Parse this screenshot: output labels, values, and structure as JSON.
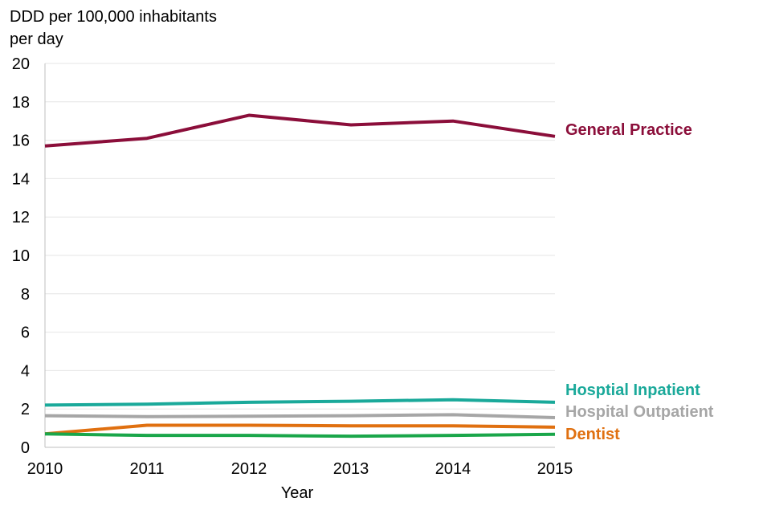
{
  "chart_data": {
    "type": "line",
    "title": "",
    "ylabel": [
      "DDD per 100,000 inhabitants",
      "per day"
    ],
    "xlabel": "Year",
    "x": [
      2010,
      2011,
      2012,
      2013,
      2014,
      2015
    ],
    "ylim": [
      0,
      20
    ],
    "yticks": [
      0,
      2,
      4,
      6,
      8,
      10,
      12,
      14,
      16,
      18,
      20
    ],
    "grid": true,
    "legend": "inline-right",
    "series": [
      {
        "name": "General Practice",
        "color": "#8b0e3a",
        "values": [
          15.7,
          16.1,
          17.3,
          16.8,
          17.0,
          16.2
        ]
      },
      {
        "name": "Hosptial Inpatient",
        "color": "#1aa99a",
        "values": [
          2.2,
          2.25,
          2.35,
          2.4,
          2.48,
          2.35
        ]
      },
      {
        "name": "Hospital Outpatient",
        "color": "#a6a6a6",
        "values": [
          1.65,
          1.6,
          1.62,
          1.65,
          1.7,
          1.55
        ]
      },
      {
        "name": "Dentist",
        "color": "#e07010",
        "values": [
          0.7,
          1.15,
          1.15,
          1.12,
          1.12,
          1.05
        ]
      },
      {
        "name": "",
        "color": "#1aa64a",
        "values": [
          0.7,
          0.62,
          0.62,
          0.58,
          0.62,
          0.68
        ]
      }
    ]
  }
}
